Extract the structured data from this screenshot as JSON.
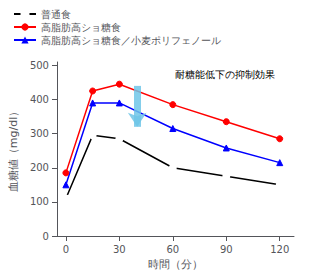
{
  "chart_data": {
    "type": "line",
    "xlabel": "時間（分）",
    "ylabel": "血糖値（mg/dl）",
    "x": [
      0,
      15,
      30,
      60,
      90,
      120
    ],
    "series": [
      {
        "name": "普通食",
        "color": "black",
        "marker": "circle_open",
        "values": [
          110,
          295,
          285,
          200,
          175,
          150
        ]
      },
      {
        "name": "高脂肪高ショ糖食",
        "color": "red",
        "marker": "circle",
        "values": [
          185,
          425,
          445,
          385,
          335,
          285
        ]
      },
      {
        "name": "高脂肪高ショ糖食／小麦ポリフェノール",
        "color": "blue",
        "marker": "triangle",
        "values": [
          150,
          390,
          390,
          315,
          258,
          215
        ]
      }
    ],
    "xlim": [
      -5,
      128
    ],
    "xticks": [
      0,
      30,
      60,
      90,
      120
    ],
    "ylim": [
      0,
      510
    ],
    "yticks": [
      0,
      100,
      200,
      300,
      400,
      500
    ],
    "grid": false,
    "legend": "top-left",
    "annotation": {
      "text": "耐糖能低下の抑制効果",
      "arrow": {
        "x": 40,
        "y_top": 440,
        "y_bottom": 320,
        "color": "#6ec6e8"
      }
    }
  }
}
